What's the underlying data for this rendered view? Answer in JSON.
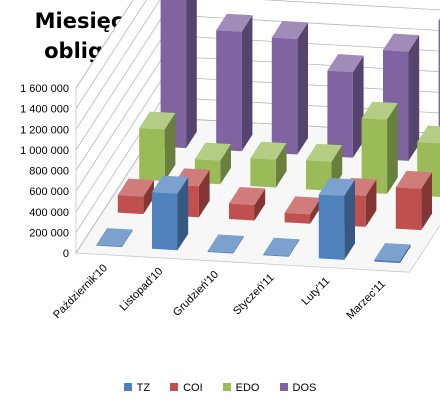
{
  "chart_data": {
    "type": "bar",
    "title_lines": [
      "Miesięczny wolumen sprzedaży",
      "obligacji detalicznych (w szt.)"
    ],
    "categories": [
      "Październik'10",
      "Listopad'10",
      "Grudzień'10",
      "Styczeń'11",
      "Luty'11",
      "Marzec'11"
    ],
    "y_ticks": [
      "0",
      "200 000",
      "400 000",
      "600 000",
      "800 000",
      "1 000 000",
      "1 200 000",
      "1 400 000",
      "1 600 000"
    ],
    "ylim": [
      0,
      1600000
    ],
    "grid": true,
    "legend_position": "bottom",
    "series": [
      {
        "name": "TZ",
        "color": "#4f81bd",
        "values": [
          10000,
          550000,
          10000,
          10000,
          620000,
          20000
        ]
      },
      {
        "name": "COI",
        "color": "#c0504d",
        "values": [
          170000,
          300000,
          150000,
          90000,
          300000,
          400000
        ]
      },
      {
        "name": "EDO",
        "color": "#9bbb59",
        "values": [
          500000,
          230000,
          270000,
          280000,
          720000,
          520000
        ]
      },
      {
        "name": "DOS",
        "color": "#8064a2",
        "values": [
          1520000,
          1160000,
          1120000,
          830000,
          1060000,
          1380000
        ]
      }
    ]
  }
}
